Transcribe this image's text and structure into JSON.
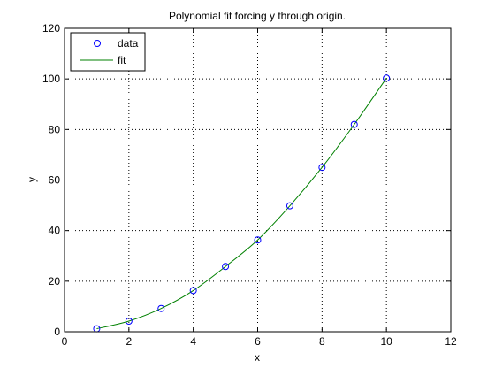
{
  "chart_data": {
    "type": "line",
    "title": "Polynomial fit forcing y through origin.",
    "xlabel": "x",
    "ylabel": "y",
    "xlim": [
      0,
      12
    ],
    "ylim": [
      0,
      120
    ],
    "xticks": [
      "0",
      "2",
      "4",
      "6",
      "8",
      "10",
      "12"
    ],
    "yticks": [
      "0",
      "20",
      "40",
      "60",
      "80",
      "100",
      "120"
    ],
    "grid": true,
    "legend_position": "top-left",
    "series": [
      {
        "name": "data",
        "style": "markers",
        "marker": "circle",
        "color": "#0000ff",
        "x": [
          1,
          2,
          3,
          4,
          5,
          6,
          7,
          8,
          9,
          10
        ],
        "y": [
          1.2,
          4.2,
          9.2,
          16.3,
          25.8,
          36.3,
          49.8,
          65.0,
          82.0,
          100.3
        ]
      },
      {
        "name": "fit",
        "style": "line",
        "color": "#008000",
        "x": [
          1,
          2,
          3,
          4,
          5,
          6,
          7,
          8,
          9,
          10
        ],
        "y": [
          1.2,
          4.2,
          9.2,
          16.3,
          25.8,
          36.3,
          49.8,
          65.0,
          82.0,
          100.3
        ]
      }
    ]
  }
}
